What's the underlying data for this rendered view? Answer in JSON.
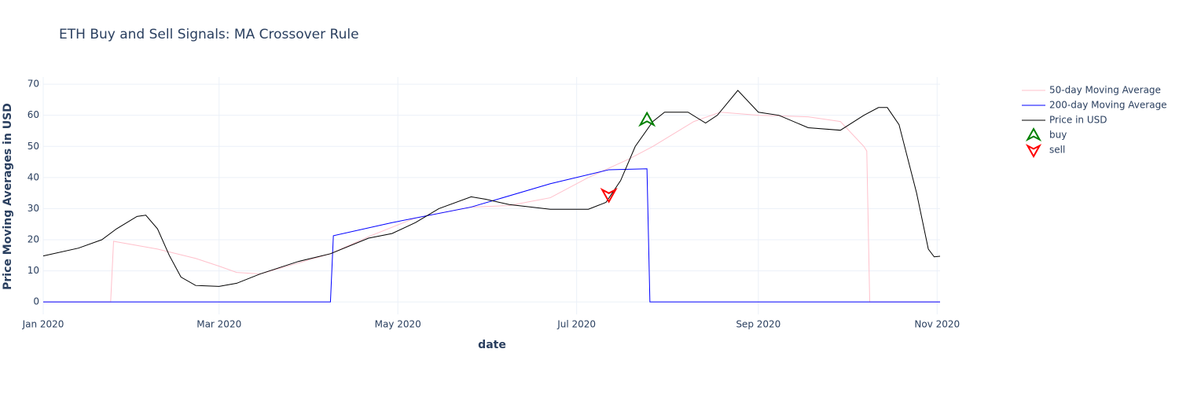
{
  "chart_data": {
    "type": "line",
    "title": "ETH Buy and Sell Signals: MA Crossover Rule",
    "x_label": "date",
    "y_label": "Price Moving Averages in USD",
    "xlim": [
      "2020-01-01",
      "2020-11-02"
    ],
    "xticks": [
      {
        "value": "2020-01-01",
        "label": "Jan 2020"
      },
      {
        "value": "2020-03-01",
        "label": "Mar 2020"
      },
      {
        "value": "2020-05-01",
        "label": "May 2020"
      },
      {
        "value": "2020-07-01",
        "label": "Jul 2020"
      },
      {
        "value": "2020-09-01",
        "label": "Sep 2020"
      },
      {
        "value": "2020-11-01",
        "label": "Nov 2020"
      }
    ],
    "ylim": [
      -4,
      72.3
    ],
    "yticks": [
      0,
      10,
      20,
      30,
      40,
      50,
      60,
      70
    ],
    "grid": true,
    "legend": "right",
    "series": [
      {
        "name": "50-day Moving Average",
        "color": "pink",
        "mode": "line",
        "x": [
          "2020-01-01",
          "2020-01-24",
          "2020-01-25",
          "2020-02-09",
          "2020-02-22",
          "2020-03-01",
          "2020-03-07",
          "2020-03-15",
          "2020-03-28",
          "2020-04-08",
          "2020-04-21",
          "2020-05-07",
          "2020-05-26",
          "2020-06-08",
          "2020-06-22",
          "2020-07-05",
          "2020-07-19",
          "2020-07-27",
          "2020-08-10",
          "2020-08-19",
          "2020-09-01",
          "2020-09-18",
          "2020-09-29",
          "2020-10-07",
          "2020-10-08",
          "2020-10-09",
          "2020-11-02"
        ],
        "values": [
          0,
          0,
          19.5,
          17,
          14,
          11.5,
          9.5,
          9,
          12.5,
          15.5,
          21,
          27,
          30.5,
          31,
          33.5,
          40,
          46,
          50,
          58,
          61,
          60,
          59.5,
          58,
          50,
          48.5,
          0,
          0
        ]
      },
      {
        "name": "200-day Moving Average",
        "color": "blue",
        "mode": "line",
        "x": [
          "2020-01-01",
          "2020-04-08",
          "2020-04-09",
          "2020-04-29",
          "2020-05-26",
          "2020-06-22",
          "2020-07-12",
          "2020-07-25",
          "2020-07-26",
          "2020-11-02"
        ],
        "values": [
          0,
          0,
          21.3,
          25.5,
          30.5,
          38,
          42.5,
          42.8,
          0,
          0
        ]
      },
      {
        "name": "Price in USD",
        "color": "black",
        "mode": "line",
        "x": [
          "2020-01-01",
          "2020-01-13",
          "2020-01-21",
          "2020-01-26",
          "2020-02-02",
          "2020-02-05",
          "2020-02-09",
          "2020-02-13",
          "2020-02-17",
          "2020-02-22",
          "2020-03-01",
          "2020-03-07",
          "2020-03-15",
          "2020-03-28",
          "2020-04-08",
          "2020-04-21",
          "2020-04-29",
          "2020-05-07",
          "2020-05-15",
          "2020-05-26",
          "2020-05-31",
          "2020-06-08",
          "2020-06-22",
          "2020-07-05",
          "2020-07-11",
          "2020-07-16",
          "2020-07-21",
          "2020-07-27",
          "2020-07-31",
          "2020-08-08",
          "2020-08-14",
          "2020-08-18",
          "2020-08-25",
          "2020-09-01",
          "2020-09-08",
          "2020-09-18",
          "2020-09-29",
          "2020-10-07",
          "2020-10-12",
          "2020-10-15",
          "2020-10-19",
          "2020-10-25",
          "2020-10-29",
          "2020-10-31",
          "2020-11-02"
        ],
        "values": [
          14.8,
          17.3,
          20,
          23.5,
          27.5,
          27.9,
          23.5,
          15,
          8,
          5.3,
          5,
          6,
          9,
          13,
          15.5,
          20.5,
          22,
          25.5,
          30,
          33.8,
          33,
          31.3,
          29.8,
          29.8,
          32,
          39,
          50,
          58,
          61,
          61,
          57.5,
          60,
          68,
          61,
          60,
          56,
          55.2,
          60,
          62.5,
          62.5,
          57,
          35,
          17,
          14.5,
          14.7
        ]
      },
      {
        "name": "buy",
        "color": "green",
        "mode": "marker",
        "marker": "triangle-up",
        "x": [
          "2020-07-25"
        ],
        "values": [
          58.5
        ]
      },
      {
        "name": "sell",
        "color": "red",
        "mode": "marker",
        "marker": "triangle-down",
        "x": [
          "2020-07-12"
        ],
        "values": [
          34.5
        ]
      }
    ]
  }
}
